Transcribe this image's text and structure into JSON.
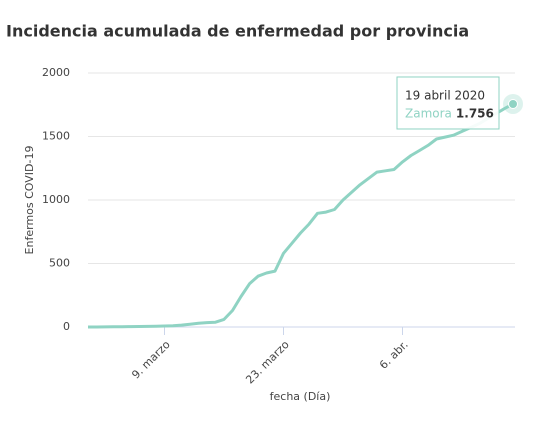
{
  "chart_data": {
    "type": "line",
    "title": "Incidencia acumulada de enfermedad por provincia",
    "x_label": "fecha (Día)",
    "y_label": "Enfermos COVID-19",
    "categories": [
      null,
      null,
      null,
      null,
      null,
      null,
      null,
      null,
      null,
      "9. marzo",
      null,
      null,
      null,
      null,
      null,
      null,
      null,
      null,
      null,
      null,
      null,
      null,
      null,
      "23. marzo",
      null,
      null,
      null,
      null,
      null,
      null,
      null,
      null,
      null,
      null,
      null,
      null,
      null,
      "6. abr.",
      null,
      null,
      null,
      null,
      null,
      null,
      null,
      null,
      null,
      null,
      null,
      null,
      null
    ],
    "series": [
      {
        "name": "Zamora",
        "color": "#8fd3c3",
        "values": [
          0,
          0,
          1,
          2,
          2,
          3,
          4,
          5,
          6,
          8,
          10,
          15,
          22,
          30,
          35,
          38,
          60,
          130,
          240,
          340,
          400,
          425,
          440,
          580,
          660,
          740,
          810,
          895,
          905,
          925,
          1000,
          1060,
          1120,
          1170,
          1220,
          1230,
          1240,
          1300,
          1350,
          1390,
          1430,
          1480,
          1495,
          1510,
          1540,
          1570,
          1600,
          1640,
          1680,
          1720,
          1756
        ]
      }
    ],
    "tooltip": {
      "date": "19 abril 2020",
      "value_label": "1.756"
    },
    "ylim": [
      0,
      2000
    ],
    "yticks": [
      0,
      500,
      1000,
      1500,
      2000
    ],
    "grid": true
  }
}
